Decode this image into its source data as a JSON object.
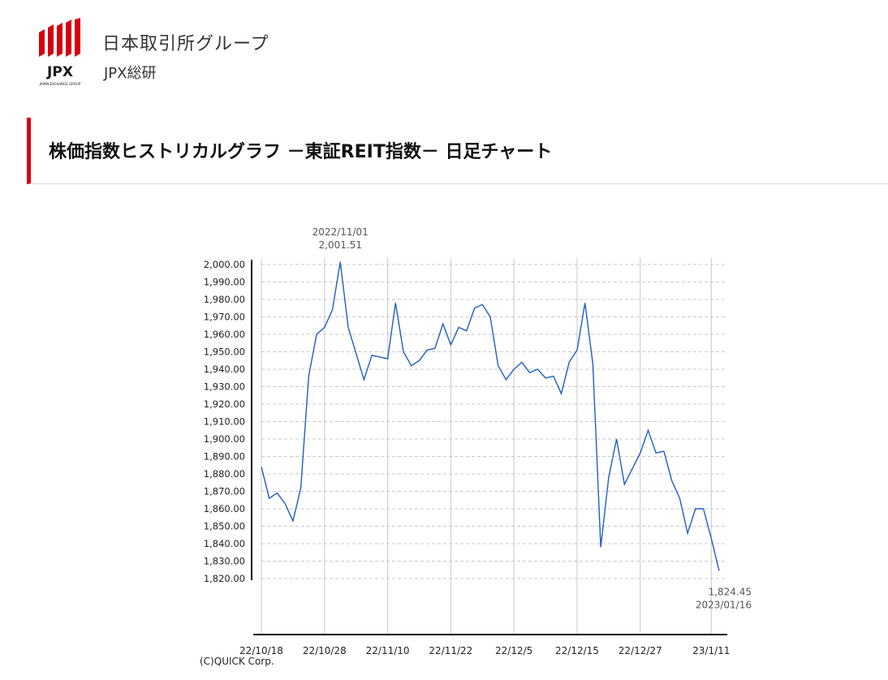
{
  "header": {
    "logo_text": "JPX",
    "logo_subtext": "JAPAN EXCHANGE GROUP",
    "brand_name": "日本取引所グループ",
    "brand_sub": "JPX総研"
  },
  "page": {
    "title": "株価指数ヒストリカルグラフ －東証REIT指数－ 日足チャート"
  },
  "chart_data": {
    "type": "line",
    "title": "",
    "xlabel": "",
    "ylabel": "",
    "ylim": [
      1820,
      2000
    ],
    "y_ticks": [
      "2,000.00",
      "1,990.00",
      "1,980.00",
      "1,970.00",
      "1,960.00",
      "1,950.00",
      "1,940.00",
      "1,930.00",
      "1,920.00",
      "1,910.00",
      "1,900.00",
      "1,890.00",
      "1,880.00",
      "1,870.00",
      "1,860.00",
      "1,850.00",
      "1,840.00",
      "1,830.00",
      "1,820.00"
    ],
    "x_tick_labels": [
      "22/10/18",
      "22/10/28",
      "22/11/10",
      "22/11/22",
      "22/12/5",
      "22/12/15",
      "22/12/27",
      "23/1/11"
    ],
    "x_tick_index": [
      0,
      8,
      16,
      24,
      32,
      40,
      48,
      57
    ],
    "grid": true,
    "color": "#1f5fbf",
    "series": [
      {
        "values": [
          1884,
          1866,
          1869,
          1863,
          1853,
          1872,
          1936,
          1960,
          1964,
          1974,
          2001.51,
          1964,
          1949,
          1934,
          1948,
          1947,
          1946,
          1978,
          1950,
          1942,
          1945,
          1951,
          1952,
          1966,
          1954,
          1964,
          1962,
          1975,
          1977,
          1970,
          1942,
          1934,
          1940,
          1944,
          1938,
          1940,
          1935,
          1936,
          1926,
          1944,
          1951,
          1978,
          1943,
          1838,
          1878,
          1900,
          1874,
          1883,
          1892,
          1905,
          1892,
          1893,
          1876,
          1866,
          1846,
          1860,
          1860,
          1843,
          1824.45
        ]
      }
    ],
    "annotations": [
      {
        "label_date": "2022/11/01",
        "label_value": "2,001.51",
        "index": 10,
        "kind": "high"
      },
      {
        "label_date": "2023/01/16",
        "label_value": "1,824.45",
        "index": 58,
        "kind": "last"
      }
    ]
  },
  "footer": {
    "copyright": "(C)QUICK Corp."
  }
}
